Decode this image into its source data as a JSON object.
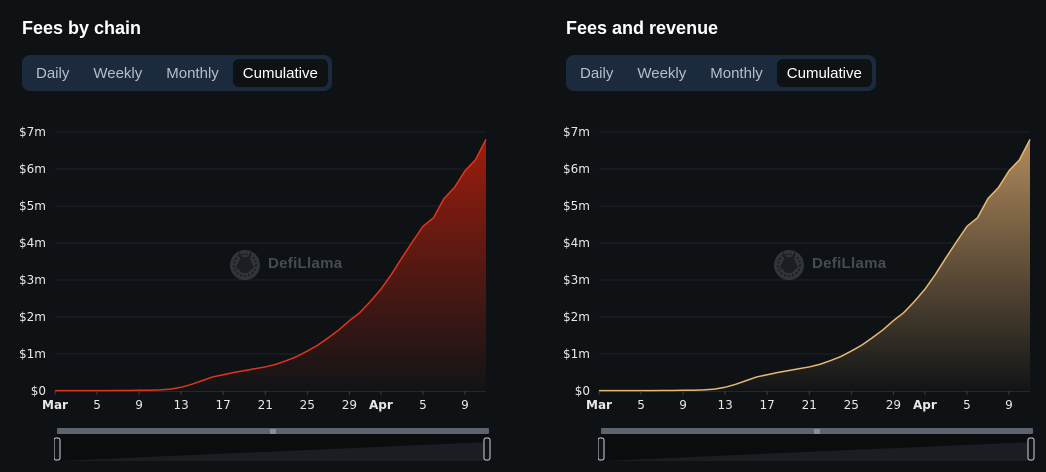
{
  "panels": [
    {
      "title": "Fees by chain",
      "tabs": [
        "Daily",
        "Weekly",
        "Monthly",
        "Cumulative"
      ],
      "active_tab": "Cumulative",
      "watermark": "DefiLlama",
      "color_line": "#e0341c",
      "color_fill_top": "#9c1d0e",
      "color_fill_bottom": "#111416"
    },
    {
      "title": "Fees and revenue",
      "tabs": [
        "Daily",
        "Weekly",
        "Monthly",
        "Cumulative"
      ],
      "active_tab": "Cumulative",
      "watermark": "DefiLlama",
      "color_line": "#e8b872",
      "color_fill_top": "#b08a5c",
      "color_fill_bottom": "#111416"
    }
  ],
  "chart_data": [
    {
      "type": "area",
      "title": "Fees by chain",
      "x": [
        "Mar 1",
        "Mar 2",
        "Mar 3",
        "Mar 4",
        "Mar 5",
        "Mar 6",
        "Mar 7",
        "Mar 8",
        "Mar 9",
        "Mar 10",
        "Mar 11",
        "Mar 12",
        "Mar 13",
        "Mar 14",
        "Mar 15",
        "Mar 16",
        "Mar 17",
        "Mar 18",
        "Mar 19",
        "Mar 20",
        "Mar 21",
        "Mar 22",
        "Mar 23",
        "Mar 24",
        "Mar 25",
        "Mar 26",
        "Mar 27",
        "Mar 28",
        "Mar 29",
        "Mar 30",
        "Mar 31",
        "Apr 1",
        "Apr 2",
        "Apr 3",
        "Apr 4",
        "Apr 5",
        "Apr 6",
        "Apr 7",
        "Apr 8",
        "Apr 9",
        "Apr 10",
        "Apr 11"
      ],
      "series": [
        {
          "values": [
            0.01,
            0.01,
            0.01,
            0.01,
            0.01,
            0.01,
            0.015,
            0.015,
            0.02,
            0.02,
            0.03,
            0.05,
            0.1,
            0.18,
            0.28,
            0.38,
            0.44,
            0.5,
            0.55,
            0.6,
            0.65,
            0.72,
            0.82,
            0.93,
            1.08,
            1.24,
            1.44,
            1.65,
            1.9,
            2.12,
            2.42,
            2.75,
            3.15,
            3.6,
            4.03,
            4.45,
            4.68,
            5.2,
            5.5,
            5.95,
            6.25,
            6.8
          ]
        }
      ],
      "x_ticks": [
        "Mar",
        "5",
        "9",
        "13",
        "17",
        "21",
        "25",
        "29",
        "Apr",
        "5",
        "9"
      ],
      "x_tick_index": [
        0,
        4,
        8,
        12,
        16,
        20,
        24,
        28,
        31,
        35,
        39
      ],
      "bold_x_ticks": [
        "Mar",
        "Apr"
      ],
      "y_ticks": [
        "$0",
        "$1m",
        "$2m",
        "$3m",
        "$4m",
        "$5m",
        "$6m",
        "$7m"
      ],
      "ylim": [
        0,
        7
      ],
      "unit": "$m",
      "grid": true
    },
    {
      "type": "area",
      "title": "Fees and revenue",
      "x": [
        "Mar 1",
        "Mar 2",
        "Mar 3",
        "Mar 4",
        "Mar 5",
        "Mar 6",
        "Mar 7",
        "Mar 8",
        "Mar 9",
        "Mar 10",
        "Mar 11",
        "Mar 12",
        "Mar 13",
        "Mar 14",
        "Mar 15",
        "Mar 16",
        "Mar 17",
        "Mar 18",
        "Mar 19",
        "Mar 20",
        "Mar 21",
        "Mar 22",
        "Mar 23",
        "Mar 24",
        "Mar 25",
        "Mar 26",
        "Mar 27",
        "Mar 28",
        "Mar 29",
        "Mar 30",
        "Mar 31",
        "Apr 1",
        "Apr 2",
        "Apr 3",
        "Apr 4",
        "Apr 5",
        "Apr 6",
        "Apr 7",
        "Apr 8",
        "Apr 9",
        "Apr 10",
        "Apr 11"
      ],
      "series": [
        {
          "values": [
            0.01,
            0.01,
            0.01,
            0.01,
            0.01,
            0.01,
            0.015,
            0.015,
            0.02,
            0.02,
            0.03,
            0.05,
            0.1,
            0.18,
            0.28,
            0.38,
            0.44,
            0.5,
            0.55,
            0.6,
            0.65,
            0.72,
            0.82,
            0.93,
            1.08,
            1.24,
            1.44,
            1.65,
            1.9,
            2.12,
            2.42,
            2.75,
            3.15,
            3.6,
            4.03,
            4.45,
            4.68,
            5.2,
            5.5,
            5.95,
            6.25,
            6.8
          ]
        }
      ],
      "x_ticks": [
        "Mar",
        "5",
        "9",
        "13",
        "17",
        "21",
        "25",
        "29",
        "Apr",
        "5",
        "9"
      ],
      "x_tick_index": [
        0,
        4,
        8,
        12,
        16,
        20,
        24,
        28,
        31,
        35,
        39
      ],
      "bold_x_ticks": [
        "Mar",
        "Apr"
      ],
      "y_ticks": [
        "$0",
        "$1m",
        "$2m",
        "$3m",
        "$4m",
        "$5m",
        "$6m",
        "$7m"
      ],
      "ylim": [
        0,
        7
      ],
      "unit": "$m",
      "grid": true
    }
  ]
}
